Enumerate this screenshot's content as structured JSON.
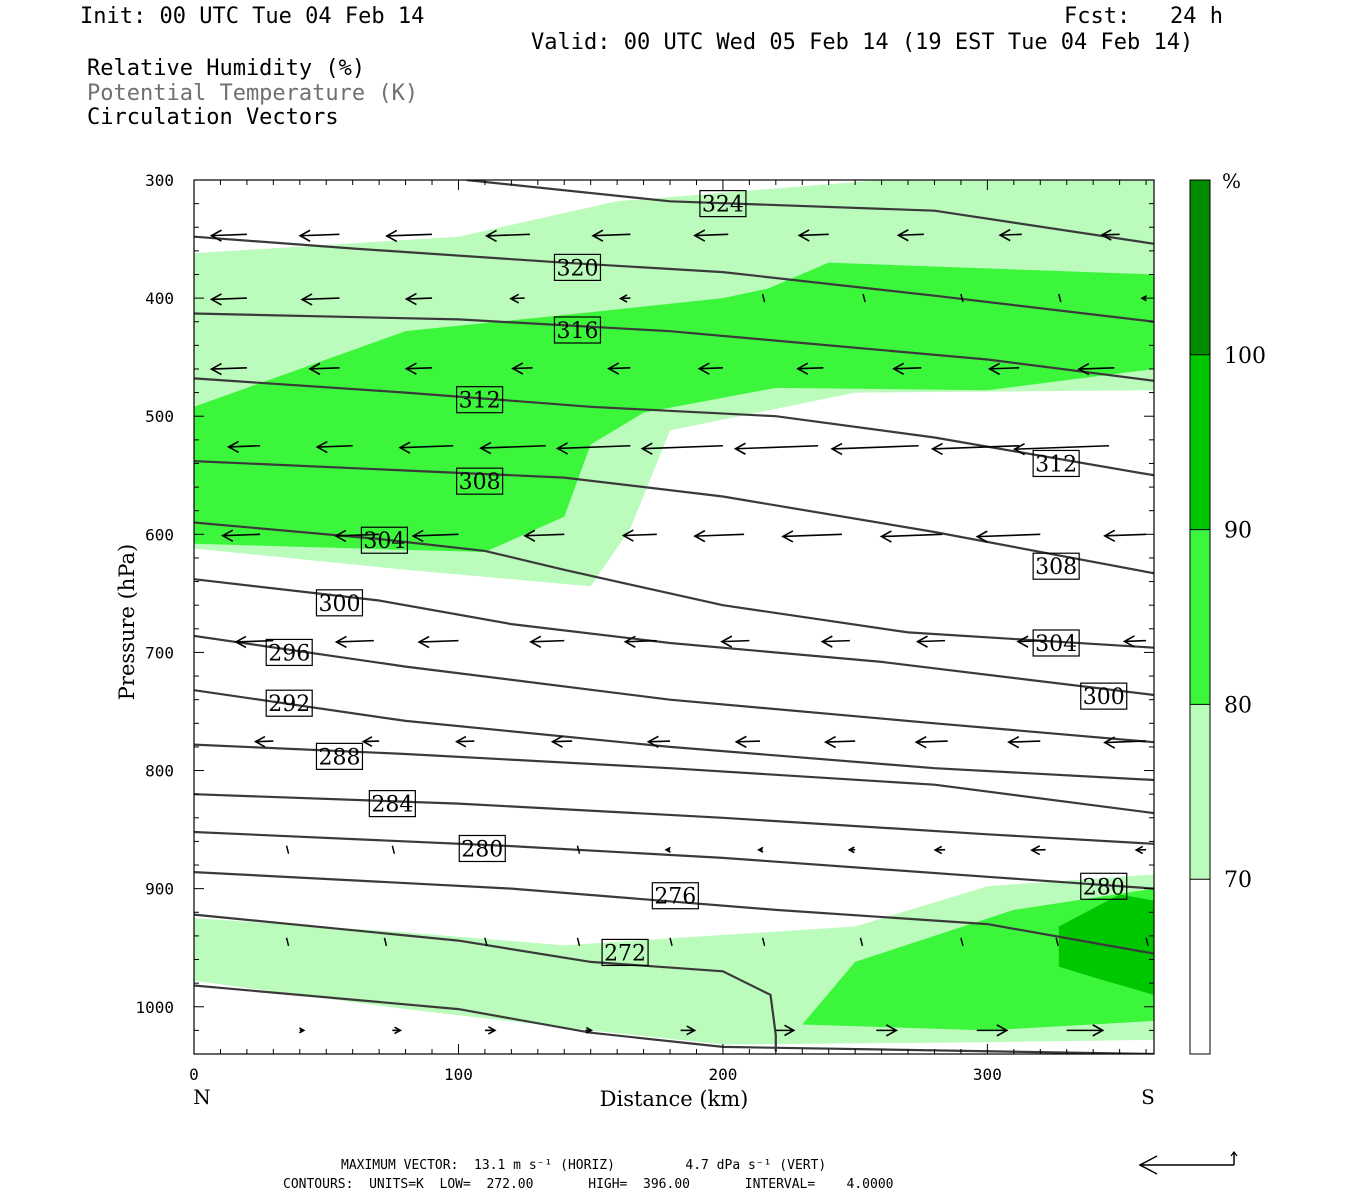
{
  "header": {
    "init": "Init: 00 UTC Tue 04 Feb 14",
    "fcst": "Fcst:   24 h",
    "valid": "Valid: 00 UTC Wed 05 Feb 14 (19 EST Tue 04 Feb 14)",
    "legend": [
      "Relative Humidity (%)",
      "Potential Temperature (K)",
      "Circulation Vectors"
    ]
  },
  "chart_data": {
    "type": "cross-section",
    "xlabel": "Distance (km)",
    "ylabel": "Pressure (hPa)",
    "xlim": [
      0,
      363
    ],
    "ylim": [
      1040,
      300
    ],
    "x_ticks": [
      0,
      100,
      200,
      300
    ],
    "y_ticks": [
      300,
      400,
      500,
      600,
      700,
      800,
      900,
      1000
    ],
    "x_end_labels": {
      "left": "N",
      "right": "S"
    },
    "colorbar": {
      "unit": "%",
      "labels": [
        70,
        80,
        90,
        100
      ],
      "levels": [
        60,
        70,
        80,
        90,
        100,
        110
      ],
      "colors": [
        "#ffffff",
        "#bbfbbb",
        "#3cf63c",
        "#00c800",
        "#008c00"
      ]
    },
    "theta_contours": [
      {
        "label": "324",
        "pts": [
          [
            103,
            300
          ],
          [
            180,
            318
          ],
          [
            280,
            326
          ],
          [
            363,
            354
          ]
        ]
      },
      {
        "label": "320",
        "pts": [
          [
            0,
            348
          ],
          [
            60,
            358
          ],
          [
            140,
            370
          ],
          [
            200,
            378
          ],
          [
            280,
            398
          ],
          [
            363,
            420
          ]
        ]
      },
      {
        "label": "316",
        "pts": [
          [
            0,
            413
          ],
          [
            100,
            418
          ],
          [
            180,
            428
          ],
          [
            230,
            438
          ],
          [
            300,
            452
          ],
          [
            363,
            470
          ]
        ]
      },
      {
        "label": "312",
        "pts": [
          [
            0,
            468
          ],
          [
            80,
            480
          ],
          [
            150,
            492
          ],
          [
            220,
            500
          ],
          [
            280,
            518
          ],
          [
            363,
            550
          ]
        ]
      },
      {
        "label": "312",
        "pts": [
          [
            0,
            538
          ],
          [
            80,
            546
          ],
          [
            140,
            552
          ],
          [
            200,
            568
          ],
          [
            280,
            598
          ],
          [
            363,
            633
          ]
        ]
      },
      {
        "label": "308",
        "pts": [
          [
            0,
            590
          ],
          [
            70,
            604
          ],
          [
            110,
            614
          ],
          [
            140,
            630
          ],
          [
            200,
            660
          ],
          [
            270,
            683
          ],
          [
            363,
            696
          ]
        ]
      },
      {
        "label": "304",
        "pts": [
          [
            0,
            638
          ],
          [
            70,
            656
          ],
          [
            120,
            676
          ],
          [
            180,
            692
          ],
          [
            260,
            708
          ],
          [
            363,
            736
          ]
        ]
      },
      {
        "label": "300",
        "pts": [
          [
            0,
            686
          ],
          [
            80,
            712
          ],
          [
            180,
            740
          ],
          [
            280,
            760
          ],
          [
            363,
            776
          ]
        ]
      },
      {
        "label": "296",
        "pts": [
          [
            0,
            732
          ],
          [
            80,
            758
          ],
          [
            180,
            780
          ],
          [
            280,
            798
          ],
          [
            363,
            808
          ]
        ]
      },
      {
        "label": "292",
        "pts": [
          [
            0,
            778
          ],
          [
            80,
            786
          ],
          [
            180,
            798
          ],
          [
            280,
            812
          ],
          [
            363,
            836
          ]
        ]
      },
      {
        "label": "288",
        "pts": [
          [
            0,
            820
          ],
          [
            100,
            828
          ],
          [
            200,
            840
          ],
          [
            300,
            854
          ],
          [
            363,
            862
          ]
        ]
      },
      {
        "label": "284",
        "pts": [
          [
            0,
            852
          ],
          [
            120,
            864
          ],
          [
            200,
            874
          ],
          [
            300,
            890
          ],
          [
            363,
            900
          ]
        ]
      },
      {
        "label": "280",
        "pts": [
          [
            0,
            886
          ],
          [
            120,
            900
          ],
          [
            220,
            918
          ],
          [
            300,
            930
          ],
          [
            363,
            955
          ]
        ]
      },
      {
        "label": "276",
        "pts": [
          [
            0,
            922
          ],
          [
            100,
            944
          ],
          [
            150,
            962
          ],
          [
            200,
            970
          ],
          [
            218,
            990
          ],
          [
            220,
            1024
          ],
          [
            220,
            1038
          ]
        ]
      },
      {
        "label": "272",
        "pts": [
          [
            0,
            982
          ],
          [
            100,
            1002
          ],
          [
            150,
            1022
          ],
          [
            200,
            1034
          ],
          [
            363,
            1040
          ]
        ]
      }
    ],
    "theta_label_positions": [
      {
        "label": "324",
        "x": 200,
        "p": 320
      },
      {
        "label": "320",
        "x": 145,
        "p": 374
      },
      {
        "label": "316",
        "x": 145,
        "p": 427
      },
      {
        "label": "312",
        "x": 108,
        "p": 486
      },
      {
        "label": "312",
        "x": 326,
        "p": 540
      },
      {
        "label": "308",
        "x": 108,
        "p": 555
      },
      {
        "label": "308",
        "x": 326,
        "p": 627
      },
      {
        "label": "304",
        "x": 72,
        "p": 605
      },
      {
        "label": "304",
        "x": 326,
        "p": 692
      },
      {
        "label": "300",
        "x": 55,
        "p": 658
      },
      {
        "label": "300",
        "x": 344,
        "p": 737
      },
      {
        "label": "296",
        "x": 36,
        "p": 700
      },
      {
        "label": "292",
        "x": 36,
        "p": 743
      },
      {
        "label": "288",
        "x": 55,
        "p": 788
      },
      {
        "label": "284",
        "x": 75,
        "p": 828
      },
      {
        "label": "280",
        "x": 109,
        "p": 866
      },
      {
        "label": "280",
        "x": 344,
        "p": 898
      },
      {
        "label": "276",
        "x": 182,
        "p": 906
      },
      {
        "label": "272",
        "x": 163,
        "p": 954
      }
    ],
    "rh_polygons": [
      {
        "level": 70,
        "pts": [
          [
            0,
            362
          ],
          [
            100,
            348
          ],
          [
            160,
            318
          ],
          [
            260,
            300
          ],
          [
            363,
            300
          ],
          [
            363,
            478
          ],
          [
            250,
            480
          ],
          [
            180,
            512
          ],
          [
            165,
            595
          ],
          [
            150,
            644
          ],
          [
            80,
            630
          ],
          [
            0,
            612
          ]
        ]
      },
      {
        "level": 70,
        "pts": [
          [
            0,
            925
          ],
          [
            80,
            937
          ],
          [
            140,
            948
          ],
          [
            250,
            932
          ],
          [
            300,
            898
          ],
          [
            363,
            888
          ],
          [
            363,
            1028
          ],
          [
            300,
            1030
          ],
          [
            200,
            1032
          ],
          [
            150,
            1020
          ],
          [
            80,
            1002
          ],
          [
            0,
            978
          ]
        ]
      },
      {
        "level": 80,
        "pts": [
          [
            0,
            492
          ],
          [
            80,
            428
          ],
          [
            150,
            412
          ],
          [
            200,
            400
          ],
          [
            217,
            392
          ],
          [
            240,
            370
          ],
          [
            363,
            380
          ],
          [
            363,
            460
          ],
          [
            300,
            478
          ],
          [
            220,
            476
          ],
          [
            170,
            497
          ],
          [
            150,
            524
          ],
          [
            140,
            585
          ],
          [
            110,
            615
          ],
          [
            0,
            608
          ]
        ]
      },
      {
        "level": 80,
        "pts": [
          [
            230,
            1015
          ],
          [
            250,
            962
          ],
          [
            310,
            918
          ],
          [
            363,
            900
          ],
          [
            363,
            1012
          ],
          [
            300,
            1020
          ]
        ]
      },
      {
        "level": 90,
        "pts": [
          [
            327,
            932
          ],
          [
            350,
            905
          ],
          [
            363,
            910
          ],
          [
            363,
            990
          ],
          [
            340,
            975
          ],
          [
            327,
            966
          ]
        ]
      }
    ],
    "vectors": {
      "scale_note": "arrow lengths in px, pointing left = northward",
      "rows": [
        {
          "p": 346,
          "pts": [
            [
              20,
              -36
            ],
            [
              55,
              -40
            ],
            [
              90,
              -46
            ],
            [
              127,
              -44
            ],
            [
              165,
              -38
            ],
            [
              202,
              -34
            ],
            [
              240,
              -30
            ],
            [
              276,
              -26
            ],
            [
              313,
              -22
            ],
            [
              350,
              -18
            ]
          ]
        },
        {
          "p": 400,
          "pts": [
            [
              20,
              -36
            ],
            [
              55,
              -38
            ],
            [
              90,
              -26
            ],
            [
              125,
              -14
            ],
            [
              165,
              -10
            ],
            [
              215,
              -2
            ],
            [
              253,
              -1
            ],
            [
              290,
              -2
            ],
            [
              327,
              -1
            ],
            [
              360,
              -4
            ]
          ]
        },
        {
          "p": 459,
          "pts": [
            [
              20,
              -36
            ],
            [
              55,
              -30
            ],
            [
              90,
              -26
            ],
            [
              128,
              -20
            ],
            [
              165,
              -22
            ],
            [
              200,
              -24
            ],
            [
              238,
              -26
            ],
            [
              275,
              -28
            ],
            [
              312,
              -30
            ],
            [
              348,
              -36
            ]
          ]
        },
        {
          "p": 525,
          "pts": [
            [
              25,
              -32
            ],
            [
              60,
              -36
            ],
            [
              98,
              -54
            ],
            [
              133,
              -66
            ],
            [
              165,
              -74
            ],
            [
              200,
              -82
            ],
            [
              236,
              -84
            ],
            [
              274,
              -88
            ],
            [
              312,
              -88
            ],
            [
              346,
              -96
            ]
          ]
        },
        {
          "p": 600,
          "pts": [
            [
              25,
              -38
            ],
            [
              70,
              -44
            ],
            [
              100,
              -46
            ],
            [
              140,
              -40
            ],
            [
              175,
              -34
            ],
            [
              208,
              -50
            ],
            [
              245,
              -60
            ],
            [
              283,
              -62
            ],
            [
              320,
              -64
            ],
            [
              360,
              -42
            ]
          ]
        },
        {
          "p": 690,
          "pts": [
            [
              30,
              -38
            ],
            [
              68,
              -38
            ],
            [
              100,
              -40
            ],
            [
              140,
              -34
            ],
            [
              175,
              -32
            ],
            [
              210,
              -28
            ],
            [
              248,
              -28
            ],
            [
              284,
              -28
            ],
            [
              322,
              -28
            ],
            [
              360,
              -22
            ]
          ]
        },
        {
          "p": 775,
          "pts": [
            [
              30,
              -18
            ],
            [
              70,
              -16
            ],
            [
              106,
              -18
            ],
            [
              143,
              -20
            ],
            [
              180,
              -22
            ],
            [
              214,
              -24
            ],
            [
              250,
              -30
            ],
            [
              285,
              -32
            ],
            [
              320,
              -32
            ],
            [
              360,
              -42
            ]
          ]
        },
        {
          "p": 867,
          "pts": [
            [
              35,
              0
            ],
            [
              75,
              0
            ],
            [
              110,
              -2
            ],
            [
              145,
              -2
            ],
            [
              180,
              -4
            ],
            [
              215,
              -4
            ],
            [
              250,
              -6
            ],
            [
              284,
              -10
            ],
            [
              322,
              -14
            ],
            [
              360,
              -10
            ]
          ]
        },
        {
          "p": 945,
          "pts": [
            [
              35,
              0
            ],
            [
              72,
              0
            ],
            [
              110,
              0
            ],
            [
              145,
              0
            ],
            [
              180,
              0
            ],
            [
              215,
              0
            ],
            [
              252,
              0
            ],
            [
              290,
              0
            ],
            [
              326,
              0
            ],
            [
              360,
              0
            ]
          ]
        },
        {
          "p": 1020,
          "pts": [
            [
              40,
              4
            ],
            [
              75,
              8
            ],
            [
              110,
              10
            ],
            [
              148,
              6
            ],
            [
              184,
              14
            ],
            [
              220,
              18
            ],
            [
              258,
              20
            ],
            [
              296,
              30
            ],
            [
              330,
              36
            ]
          ]
        }
      ]
    }
  },
  "footer": {
    "max_vector": "MAXIMUM VECTOR:  13.1 m s⁻¹ (HORIZ)         4.7 dPa s⁻¹ (VERT)",
    "contours": "CONTOURS:  UNITS=K  LOW=  272.00       HIGH=  396.00       INTERVAL=    4.0000"
  }
}
